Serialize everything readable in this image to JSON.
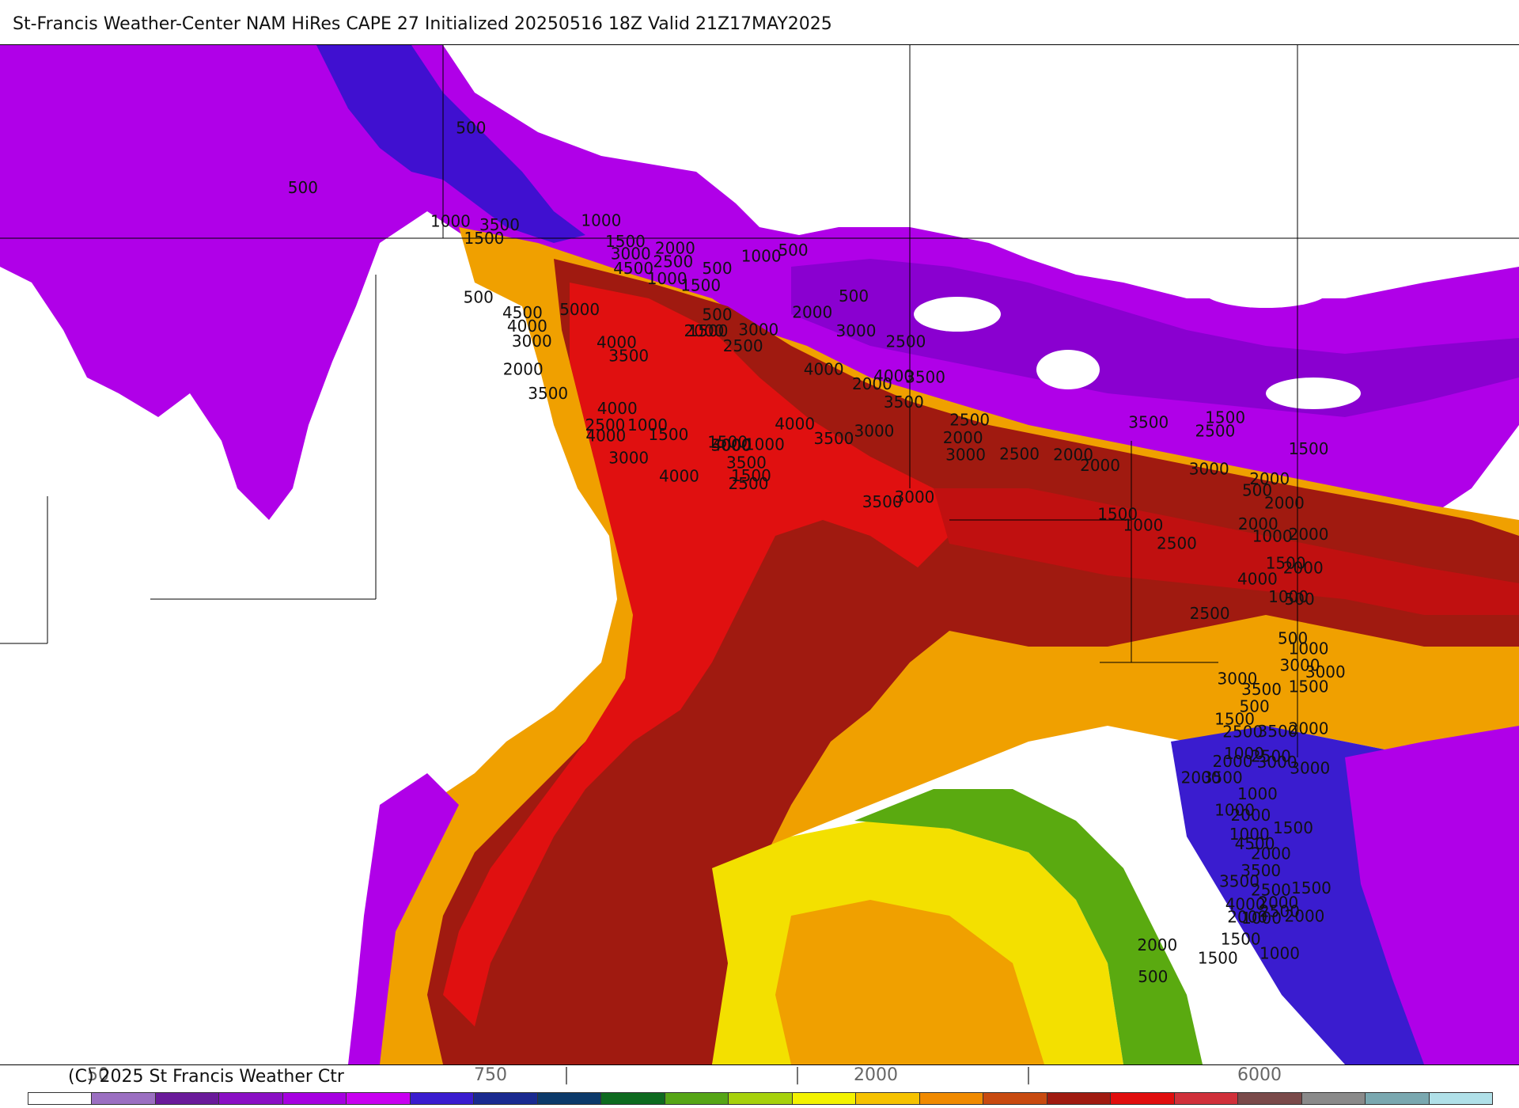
{
  "title": "St-Francis Weather-Center NAM HiRes CAPE  27 Initialized 20250516 18Z Valid 21Z17MAY2025",
  "copyright": "(C) 2025 St Francis Weather Ctr",
  "legend": {
    "tick_labels": [
      "50",
      "750",
      "2000",
      "6000"
    ],
    "tick_marks": [
      "|",
      "|",
      "|"
    ],
    "colors": [
      "#ffffff",
      "#9b6fc1",
      "#6a1a9a",
      "#8a0fc4",
      "#a600e0",
      "#c800f0",
      "#3a1ccf",
      "#1a2a90",
      "#0c3a6a",
      "#0e6a1f",
      "#56a516",
      "#a6d10c",
      "#f3f200",
      "#f6c200",
      "#f08a00",
      "#c84a10",
      "#a01a10",
      "#e00d0d",
      "#d0303a",
      "#7a4a4a",
      "#8a8a8a",
      "#7aa8b0",
      "#b0e0e8"
    ]
  },
  "map": {
    "regions": [
      {
        "name": "northwest-purple",
        "color": "#b000e8"
      },
      {
        "name": "northwest-blue",
        "color": "#4010d0"
      },
      {
        "name": "east-purple",
        "color": "#b000e8"
      },
      {
        "name": "main-orange",
        "color": "#f08a00"
      },
      {
        "name": "main-darkred",
        "color": "#a01a10"
      },
      {
        "name": "main-red",
        "color": "#e01010"
      },
      {
        "name": "gulf-yellow",
        "color": "#f3e000"
      },
      {
        "name": "gulf-orange",
        "color": "#f0a000"
      },
      {
        "name": "gulf-green",
        "color": "#5aaa10"
      },
      {
        "name": "southeast-blue",
        "color": "#3a1ccf"
      },
      {
        "name": "southeast-purple",
        "color": "#b000e8"
      }
    ],
    "contour_labels": [
      "500",
      "500",
      "1000",
      "3500",
      "1500",
      "1000",
      "1500",
      "2000",
      "3000",
      "2500",
      "4500",
      "1000",
      "1500",
      "500",
      "500",
      "1000",
      "500",
      "500",
      "4500",
      "5000",
      "4000",
      "3000",
      "4000",
      "3500",
      "500",
      "2000",
      "3000",
      "2000",
      "1500",
      "3000",
      "2500",
      "2500",
      "2000",
      "3500",
      "4000",
      "4000",
      "3500",
      "4000",
      "2500",
      "1000",
      "1500",
      "3000",
      "2000",
      "3500",
      "4000",
      "3000",
      "3500",
      "1000",
      "1500",
      "1500",
      "4000",
      "4000",
      "4000",
      "2500",
      "3500",
      "3000",
      "3500",
      "3000",
      "2500",
      "2000",
      "3000",
      "2500",
      "2000",
      "2000",
      "3500",
      "2500",
      "1500",
      "3000",
      "2000",
      "1500",
      "1000",
      "500",
      "2000",
      "2500",
      "1500",
      "2000",
      "1000",
      "1500",
      "4000",
      "1000",
      "2500",
      "500",
      "3000",
      "3000",
      "3000",
      "3500",
      "500",
      "1500",
      "2500",
      "2000",
      "2000",
      "1000",
      "1000",
      "2000",
      "3500",
      "2500",
      "2000",
      "1000",
      "1500",
      "500",
      "2000",
      "3500",
      "4000",
      "2000",
      "1500",
      "1000",
      "2000",
      "1500",
      "2500",
      "4500",
      "2000",
      "1500",
      "1000",
      "3500",
      "3000",
      "3500",
      "2500",
      "1000",
      "3000",
      "2000",
      "1500",
      "1000",
      "500",
      "2000",
      "2000"
    ]
  }
}
